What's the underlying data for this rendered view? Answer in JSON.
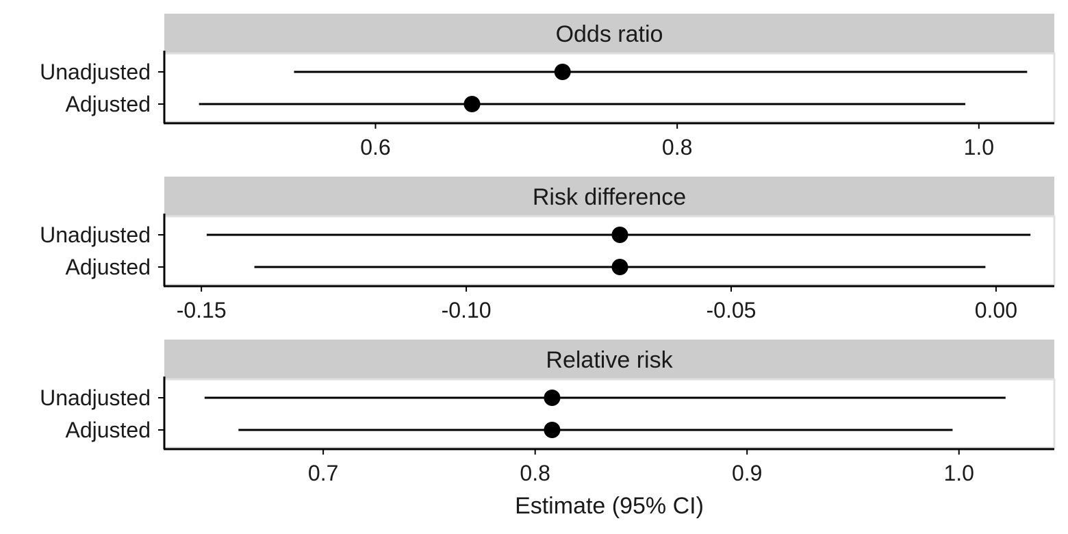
{
  "chart_data": [
    {
      "type": "forest",
      "title": "Odds ratio",
      "categories": [
        "Unadjusted",
        "Adjusted"
      ],
      "estimates": [
        0.724,
        0.664
      ],
      "lower": [
        0.546,
        0.483
      ],
      "upper": [
        1.032,
        0.991
      ],
      "xlim": [
        0.46,
        1.05
      ],
      "xticks": [
        0.6,
        0.8,
        1.0
      ],
      "xtick_labels": [
        "0.6",
        "0.8",
        "1.0"
      ],
      "grid": false
    },
    {
      "type": "forest",
      "title": "Risk difference",
      "categories": [
        "Unadjusted",
        "Adjusted"
      ],
      "estimates": [
        -0.071,
        -0.071
      ],
      "lower": [
        -0.149,
        -0.14
      ],
      "upper": [
        0.0065,
        -0.002
      ],
      "xlim": [
        -0.157,
        0.011
      ],
      "xticks": [
        -0.15,
        -0.1,
        -0.05,
        0.0
      ],
      "xtick_labels": [
        "-0.15",
        "-0.10",
        "-0.05",
        "0.00"
      ],
      "grid": false
    },
    {
      "type": "forest",
      "title": "Relative risk",
      "categories": [
        "Unadjusted",
        "Adjusted"
      ],
      "estimates": [
        0.808,
        0.808
      ],
      "lower": [
        0.644,
        0.66
      ],
      "upper": [
        1.022,
        0.997
      ],
      "xlim": [
        0.625,
        1.045
      ],
      "xticks": [
        0.7,
        0.8,
        0.9,
        1.0
      ],
      "xtick_labels": [
        "0.7",
        "0.8",
        "0.9",
        "1.0"
      ],
      "grid": false
    }
  ],
  "xlabel": "Estimate (95% CI)",
  "colors": {
    "strip": "#cccccc",
    "strip_border": "#e0e0e0",
    "marks": "#000000",
    "text": "#1a1a1a"
  }
}
